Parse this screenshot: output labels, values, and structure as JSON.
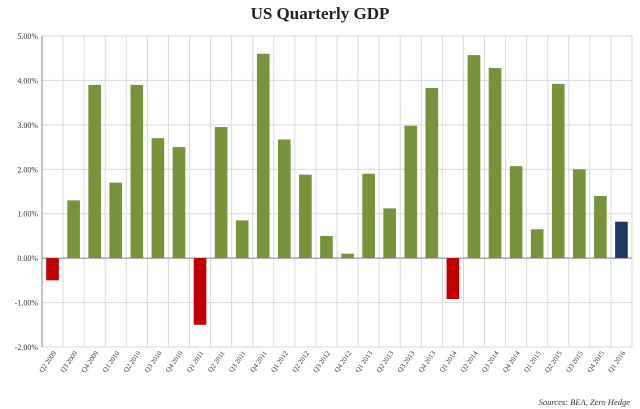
{
  "chart_data": {
    "type": "bar",
    "title": "US Quarterly GDP",
    "source": "Sources: BEA, Zero Hedge",
    "xlabel": "",
    "ylabel": "",
    "ylim": [
      -2,
      5
    ],
    "yticks": [
      -2,
      -1,
      0,
      1,
      2,
      3,
      4,
      5
    ],
    "ytick_labels": [
      "-2.00%",
      "-1.00%",
      "0.00%",
      "1.00%",
      "2.00%",
      "3.00%",
      "4.00%",
      "5.00%"
    ],
    "grid": true,
    "legend": "none",
    "colors": {
      "positive": "#77933c",
      "negative": "#c00000",
      "latest": "#1f3864"
    },
    "categories": [
      "Q2 2009",
      "Q3 2009",
      "Q4 2009",
      "Q1 2010",
      "Q2 2010",
      "Q3 2010",
      "Q4 2010",
      "Q1 2011",
      "Q2 2011",
      "Q3 2011",
      "Q4 2011",
      "Q1 2012",
      "Q2 2012",
      "Q3 2012",
      "Q4 2012",
      "Q1 2013",
      "Q2 2013",
      "Q3 2013",
      "Q4 2013",
      "Q1 2014",
      "Q2 2014",
      "Q3 2014",
      "Q4 2014",
      "Q1 2015",
      "Q2 2015",
      "Q3 2015",
      "Q4 2015",
      "Q1 2016"
    ],
    "values": [
      -0.5,
      1.3,
      3.9,
      1.7,
      3.9,
      2.7,
      2.5,
      -1.5,
      2.95,
      0.85,
      4.6,
      2.67,
      1.88,
      0.5,
      0.1,
      1.9,
      1.12,
      2.98,
      3.83,
      -0.92,
      4.57,
      4.28,
      2.07,
      0.65,
      3.92,
      2.0,
      1.4,
      0.82
    ]
  }
}
